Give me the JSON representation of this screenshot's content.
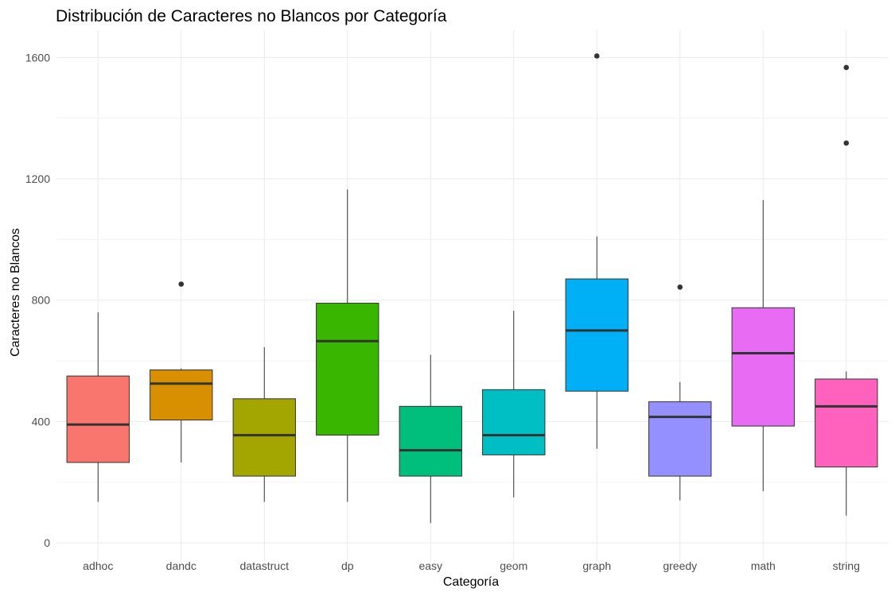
{
  "chart_data": {
    "type": "box",
    "title": "Distribución de Caracteres no Blancos por Categoría",
    "xlabel": "Categoría",
    "ylabel": "Caracteres no Blancos",
    "ylim": [
      -60,
      1690
    ],
    "yticks": [
      0,
      400,
      800,
      1200,
      1600
    ],
    "grid": true,
    "legend": "none",
    "categories": [
      "adhoc",
      "dandc",
      "datastruct",
      "dp",
      "easy",
      "geom",
      "graph",
      "greedy",
      "math",
      "string"
    ],
    "boxes": [
      {
        "category": "adhoc",
        "whisker_low": 135,
        "q1": 265,
        "median": 390,
        "q3": 550,
        "whisker_high": 760,
        "outliers": [],
        "color": "#F8766D"
      },
      {
        "category": "dandc",
        "whisker_low": 265,
        "q1": 405,
        "median": 525,
        "q3": 570,
        "whisker_high": 575,
        "outliers": [
          853
        ],
        "color": "#D89000"
      },
      {
        "category": "datastruct",
        "whisker_low": 135,
        "q1": 220,
        "median": 355,
        "q3": 475,
        "whisker_high": 645,
        "outliers": [],
        "color": "#A3A500"
      },
      {
        "category": "dp",
        "whisker_low": 135,
        "q1": 355,
        "median": 665,
        "q3": 790,
        "whisker_high": 1165,
        "outliers": [],
        "color": "#39B600"
      },
      {
        "category": "easy",
        "whisker_low": 65,
        "q1": 220,
        "median": 305,
        "q3": 450,
        "whisker_high": 620,
        "outliers": [],
        "color": "#00BF7D"
      },
      {
        "category": "geom",
        "whisker_low": 150,
        "q1": 290,
        "median": 355,
        "q3": 505,
        "whisker_high": 765,
        "outliers": [],
        "color": "#00BFC4"
      },
      {
        "category": "graph",
        "whisker_low": 310,
        "q1": 500,
        "median": 700,
        "q3": 870,
        "whisker_high": 1010,
        "outliers": [
          1605
        ],
        "color": "#00B0F6"
      },
      {
        "category": "greedy",
        "whisker_low": 140,
        "q1": 220,
        "median": 415,
        "q3": 465,
        "whisker_high": 530,
        "outliers": [
          843
        ],
        "color": "#9590FF"
      },
      {
        "category": "math",
        "whisker_low": 170,
        "q1": 385,
        "median": 625,
        "q3": 775,
        "whisker_high": 1130,
        "outliers": [],
        "color": "#E76BF3"
      },
      {
        "category": "string",
        "whisker_low": 90,
        "q1": 250,
        "median": 450,
        "q3": 540,
        "whisker_high": 565,
        "outliers": [
          1318,
          1567
        ],
        "color": "#FF62BC"
      }
    ]
  }
}
